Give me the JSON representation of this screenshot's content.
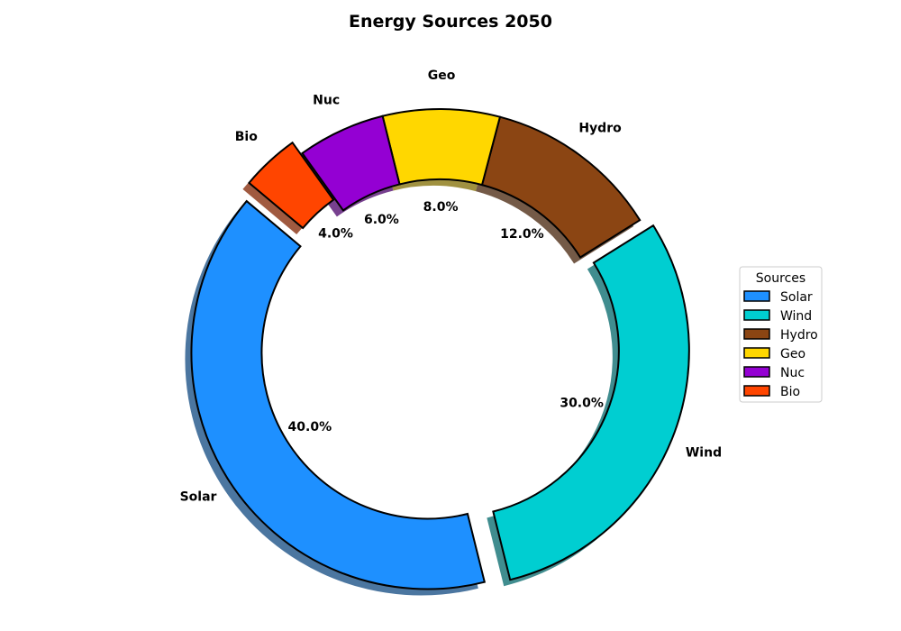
{
  "chart_data": {
    "type": "pie",
    "title": "Energy Sources 2050",
    "categories": [
      "Solar",
      "Wind",
      "Hydro",
      "Geo",
      "Nuc",
      "Bio"
    ],
    "values": [
      40.0,
      30.0,
      12.0,
      8.0,
      6.0,
      4.0
    ],
    "percent_labels": [
      "40.0%",
      "30.0%",
      "12.0%",
      "8.0%",
      "6.0%",
      "4.0%"
    ],
    "colors": [
      "#1e90ff",
      "#00ced1",
      "#8b4513",
      "#ffd700",
      "#9400d3",
      "#ff4500"
    ],
    "exploded": [
      "Solar",
      "Wind",
      "Bio"
    ],
    "style": "donut",
    "shadow": true,
    "legend": {
      "title": "Sources",
      "placement": "center-right",
      "entries": [
        "Solar",
        "Wind",
        "Hydro",
        "Geo",
        "Nuc",
        "Bio"
      ]
    }
  }
}
